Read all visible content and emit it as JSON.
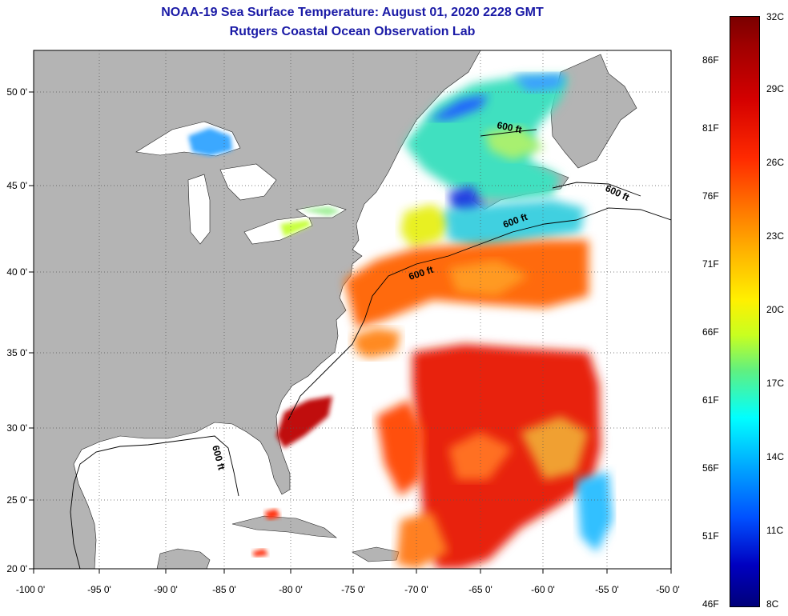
{
  "header": {
    "title": "NOAA-19 Sea Surface Temperature:  August 01, 2020 2228 GMT",
    "subtitle": "Rutgers Coastal Ocean Observation Lab"
  },
  "axes": {
    "x_labels": [
      "-100 0'",
      "-95 0'",
      "-90 0'",
      "-85 0'",
      "-80 0'",
      "-75 0'",
      "-70 0'",
      "-65 0'",
      "-60 0'",
      "-55 0'",
      "-50 0'"
    ],
    "y_labels": [
      "50 0'",
      "45 0'",
      "40 0'",
      "35 0'",
      "30 0'",
      "25 0'",
      "20 0'"
    ]
  },
  "contours": {
    "label": "600 ft"
  },
  "colorbar": {
    "celsius": [
      "32C",
      "29C",
      "26C",
      "23C",
      "20C",
      "17C",
      "14C",
      "11C",
      "8C"
    ],
    "fahrenheit": [
      "86F",
      "81F",
      "76F",
      "71F",
      "66F",
      "61F",
      "56F",
      "51F",
      "46F"
    ]
  },
  "colors": {
    "title": "#1a1aa6",
    "land": "#b4b4b4",
    "no_data": "#ffffff"
  }
}
